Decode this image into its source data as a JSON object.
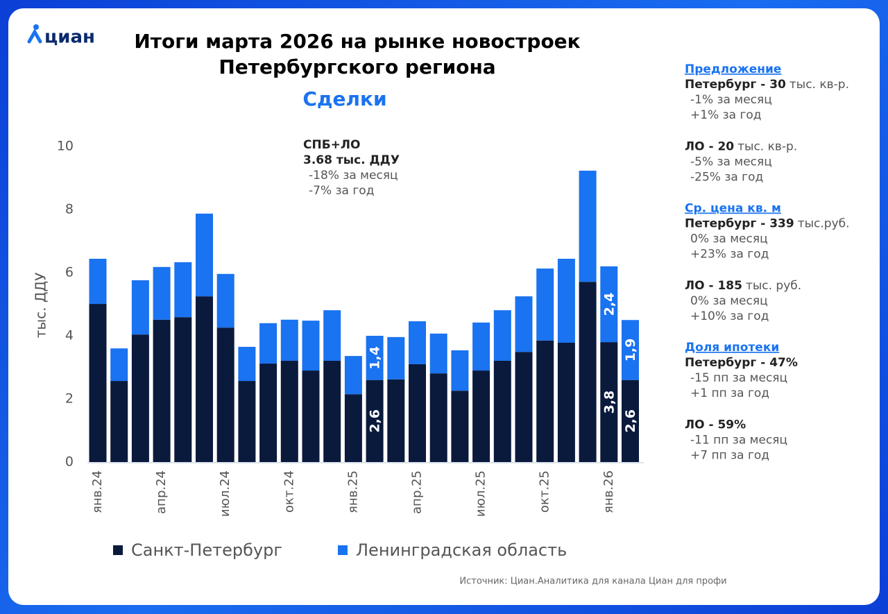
{
  "logo": "циан",
  "chart_data": {
    "type": "stacked-bar",
    "title": [
      "Итоги марта 2026 на рынке новостроек",
      "Петербургского региона"
    ],
    "subtitle": "Сделки",
    "y_label": "тыс. ДДУ",
    "annotation": [
      "СПБ+ЛО",
      "3.68 тыс. ДДУ",
      "-18% за месяц",
      "-7% за год"
    ],
    "categories": [
      "янв.24",
      null,
      null,
      "апр.24",
      null,
      null,
      "июл.24",
      null,
      null,
      "окт.24",
      null,
      null,
      "янв.25",
      null,
      null,
      "апр.25",
      null,
      null,
      "июл.25",
      null,
      null,
      "окт.25",
      null,
      null,
      "янв.26",
      null
    ],
    "series": [
      {
        "name": "Санкт-Петербург",
        "color": "#0a1a3c",
        "values": [
          5.01,
          2.57,
          4.04,
          4.51,
          4.59,
          5.25,
          4.26,
          2.57,
          3.12,
          3.21,
          2.9,
          3.21,
          2.15,
          2.6,
          2.62,
          3.1,
          2.81,
          2.26,
          2.9,
          3.21,
          3.49,
          3.85,
          3.78,
          5.71,
          3.8,
          2.6
        ],
        "value_labels": [
          null,
          null,
          null,
          null,
          null,
          null,
          null,
          null,
          null,
          null,
          null,
          null,
          null,
          "2,6",
          null,
          null,
          null,
          null,
          null,
          null,
          null,
          null,
          null,
          null,
          "3,8",
          "2,6"
        ]
      },
      {
        "name": "Ленинградская область",
        "color": "#1a73f0",
        "values": [
          1.43,
          1.03,
          1.72,
          1.67,
          1.74,
          2.62,
          1.7,
          1.08,
          1.28,
          1.3,
          1.58,
          1.6,
          1.21,
          1.4,
          1.34,
          1.36,
          1.26,
          1.28,
          1.52,
          1.6,
          1.76,
          2.28,
          2.66,
          3.52,
          2.4,
          1.9
        ],
        "value_labels": [
          null,
          null,
          null,
          null,
          null,
          null,
          null,
          null,
          null,
          null,
          null,
          null,
          null,
          "1,4",
          null,
          null,
          null,
          null,
          null,
          null,
          null,
          null,
          null,
          null,
          "2,4",
          "1,9"
        ]
      }
    ],
    "ylim": [
      0,
      10
    ],
    "yticks": [
      0,
      2,
      4,
      6,
      8,
      10
    ],
    "grid": false
  },
  "sidebar": [
    {
      "heading": "Предложение",
      "entries": [
        {
          "bold": "Петербург - 30",
          "rest": "тыс. кв-р.",
          "lines": [
            "-1% за месяц",
            "+1% за год"
          ]
        },
        {
          "bold": "ЛО - 20",
          "rest": "тыс. кв-р.",
          "lines": [
            "-5% за месяц",
            "-25% за год"
          ]
        }
      ]
    },
    {
      "heading": "Ср. цена кв. м",
      "entries": [
        {
          "bold": "Петербург - 339",
          "rest": "тыс.руб.",
          "lines": [
            "0% за месяц",
            "+23% за год"
          ]
        },
        {
          "bold": "ЛО - 185",
          "rest": "тыс. руб.",
          "lines": [
            "0% за месяц",
            "+10% за год"
          ]
        }
      ]
    },
    {
      "heading": "Доля ипотеки",
      "entries": [
        {
          "bold": "Петербург - 47%",
          "lines": [
            "-15 пп за месяц",
            "+1 пп за год"
          ]
        },
        {
          "bold": "ЛО - 59%",
          "lines": [
            "-11 пп за месяц",
            "+7 пп за год"
          ]
        }
      ]
    }
  ],
  "source": "Источник: Циан.Аналитика для канала Циан для профи"
}
